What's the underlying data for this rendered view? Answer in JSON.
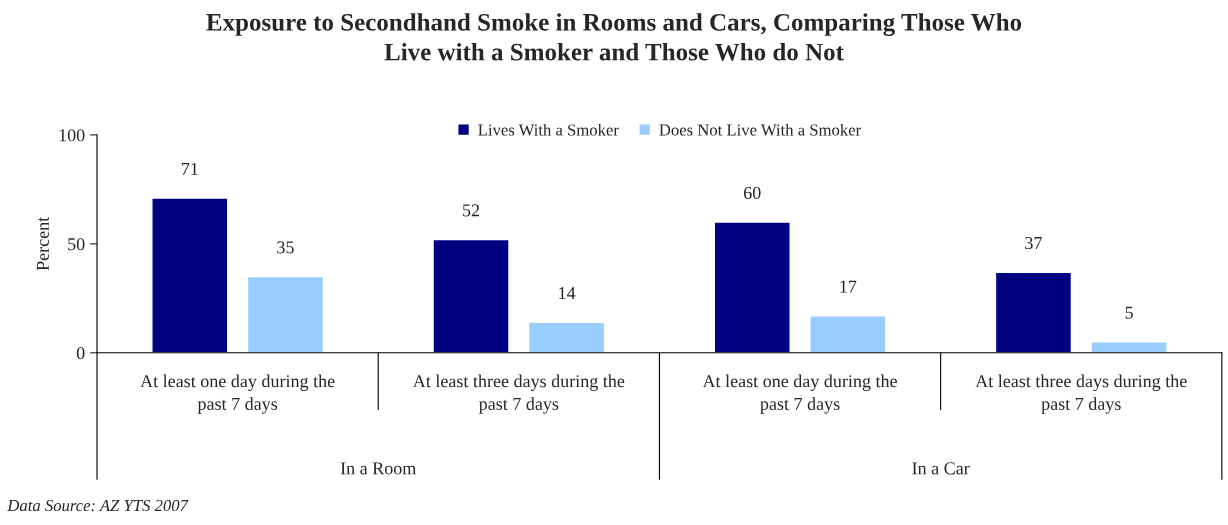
{
  "chart_data": {
    "type": "bar",
    "title": "Exposure to Secondhand Smoke in Rooms and Cars, Comparing Those Who\nLive with a Smoker and Those Who do Not",
    "ylabel": "Percent",
    "categories": [
      "At least one day during the\npast 7 days",
      "At least three days during the\npast 7 days",
      "At least one day during the\npast 7 days",
      "At least three days during the\npast 7 days"
    ],
    "series": [
      {
        "name": "Lives With a Smoker",
        "color": "#000080",
        "values": [
          71,
          52,
          60,
          37
        ]
      },
      {
        "name": "Does Not Live With a Smoker",
        "color": "#99ccff",
        "values": [
          35,
          14,
          17,
          5
        ]
      }
    ],
    "ylim": [
      0,
      100
    ],
    "yticks": [
      0,
      50,
      100
    ],
    "data_labels": true,
    "grid": false,
    "legend": "top",
    "annotations": [
      "In a Room",
      "In a Car",
      "Data Source: AZ YTS 2007"
    ]
  }
}
